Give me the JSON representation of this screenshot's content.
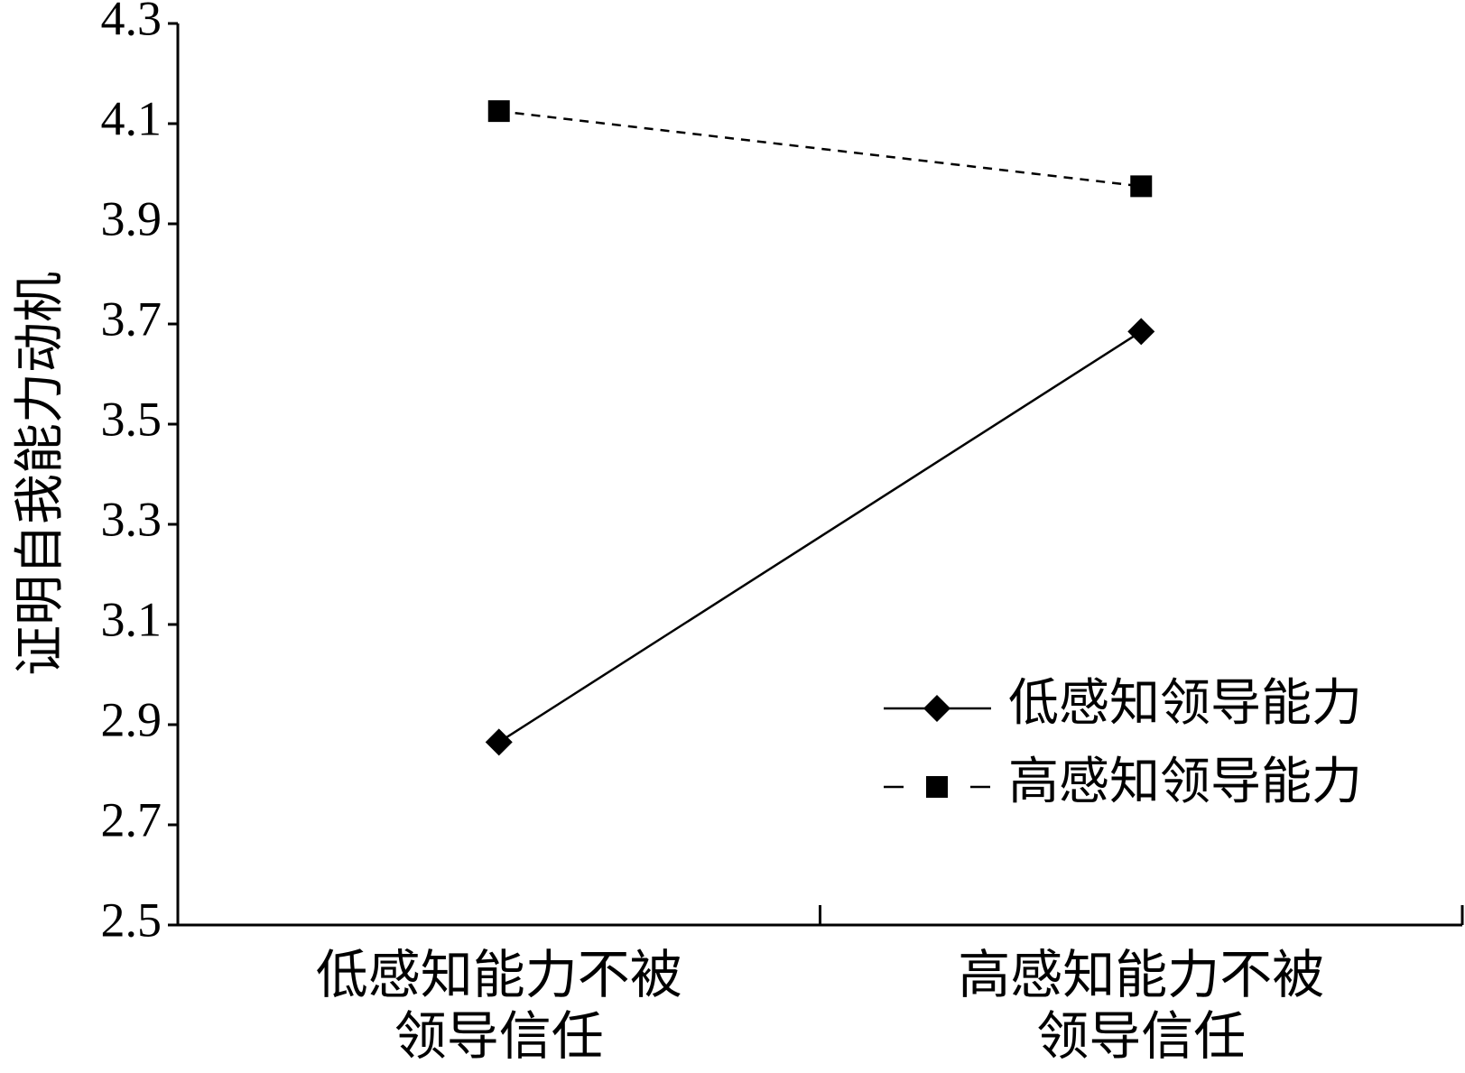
{
  "chart_data": {
    "type": "line",
    "y_label": "证明自我能力动机",
    "categories": [
      "低感知能力不被\n领导信任",
      "高感知能力不被\n领导信任"
    ],
    "series": [
      {
        "name": "低感知领导能力",
        "color": "#000000",
        "dash": "solid",
        "marker": "diamond",
        "values": [
          2.865,
          3.685
        ]
      },
      {
        "name": "高感知领导能力",
        "color": "#000000",
        "dash": "dashed",
        "marker": "square",
        "values": [
          4.125,
          3.975
        ]
      }
    ],
    "ylim": [
      2.5,
      4.3
    ],
    "yticks": [
      {
        "value": 2.5,
        "label": "2.5"
      },
      {
        "value": 2.7,
        "label": "2.7"
      },
      {
        "value": 2.9,
        "label": "2.9"
      },
      {
        "value": 3.1,
        "label": "3.1"
      },
      {
        "value": 3.3,
        "label": "3.3"
      },
      {
        "value": 3.5,
        "label": "3.5"
      },
      {
        "value": 3.7,
        "label": "3.7"
      },
      {
        "value": 3.9,
        "label": "3.9"
      },
      {
        "value": 4.1,
        "label": "4.1"
      },
      {
        "value": 4.3,
        "label": "4.3"
      }
    ],
    "legend": "lower right"
  }
}
